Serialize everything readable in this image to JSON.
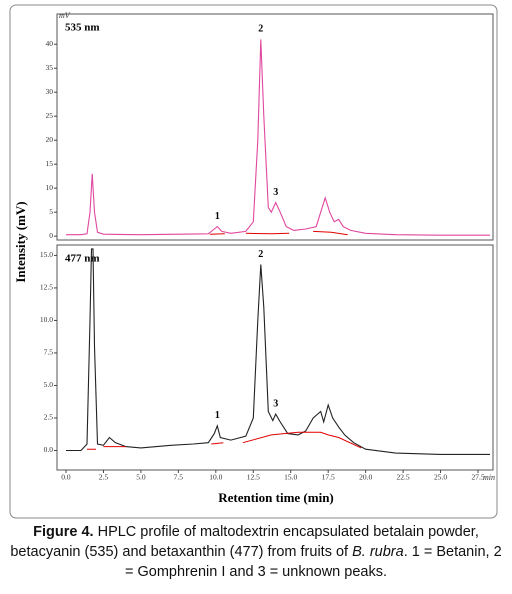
{
  "chart_data": [
    {
      "type": "line",
      "label": "535 nm",
      "unit_label": "mV",
      "ylabel": "Intensity (mV)",
      "xlim": [
        -0.6,
        28.5
      ],
      "ylim": [
        -0.8,
        46.3
      ],
      "yticks": [
        0,
        5,
        10,
        15,
        20,
        25,
        30,
        35,
        40
      ],
      "series": [
        {
          "color": "#e0479e",
          "x": [
            0,
            1.0,
            1.4,
            1.6,
            1.75,
            1.9,
            2.1,
            2.5,
            5,
            9.5,
            9.9,
            10.1,
            10.4,
            11,
            12,
            12.5,
            12.8,
            13.0,
            13.2,
            13.5,
            13.7,
            14.0,
            14.3,
            14.7,
            15.2,
            16,
            16.7,
            17.0,
            17.3,
            17.6,
            17.9,
            18.2,
            18.5,
            19,
            20,
            22,
            25,
            28.3
          ],
          "values": [
            0.3,
            0.3,
            0.5,
            5,
            13,
            5,
            0.8,
            0.4,
            0.3,
            0.5,
            1.5,
            2.0,
            1.0,
            0.6,
            1.0,
            3,
            20,
            41,
            25,
            6,
            5,
            7,
            5,
            2,
            1.2,
            1.5,
            2,
            5,
            8,
            5,
            3,
            3.5,
            2,
            1.2,
            0.6,
            0.3,
            0.2,
            0.2
          ]
        },
        {
          "color": "#e00000",
          "x": [
            9.6,
            10.6,
            null,
            12.0,
            13.7,
            14.9,
            null,
            16.5,
            17.7,
            18.8
          ],
          "values": [
            0.4,
            0.5,
            null,
            0.6,
            0.5,
            0.6,
            null,
            1.0,
            0.8,
            0.3
          ]
        }
      ],
      "peaks": [
        {
          "label": "1",
          "x": 10.1
        },
        {
          "label": "2",
          "x": 13.0
        },
        {
          "label": "3",
          "x": 14.0
        }
      ]
    },
    {
      "type": "line",
      "label": "477 nm",
      "xlabel": "Retention time (min)",
      "x_unit_label": "min",
      "xlim": [
        -0.6,
        28.5
      ],
      "ylim": [
        -1.5,
        15.8
      ],
      "yticks": [
        {
          "value": 0,
          "label": "0.0"
        },
        2.5,
        {
          "value": 5,
          "label": "5.0"
        },
        7.5,
        {
          "value": 10,
          "label": "10.0"
        },
        12.5,
        {
          "value": 15,
          "label": "15.0"
        }
      ],
      "xticks": [
        {
          "value": 0,
          "label": "0.0"
        },
        2.5,
        {
          "value": 5,
          "label": "5.0"
        },
        7.5,
        {
          "value": 10,
          "label": "10.0"
        },
        12.5,
        {
          "value": 15,
          "label": "15.0"
        },
        17.5,
        {
          "value": 20,
          "label": "20.0"
        },
        22.5,
        {
          "value": 25,
          "label": "25.0"
        },
        27.5
      ],
      "series": [
        {
          "color": "#222222",
          "x": [
            0,
            1.0,
            1.4,
            1.6,
            1.7,
            1.8,
            1.9,
            2.1,
            2.5,
            2.9,
            3.3,
            4,
            5,
            7,
            8.5,
            9.5,
            9.9,
            10.1,
            10.3,
            11,
            12,
            12.5,
            12.8,
            13.0,
            13.2,
            13.5,
            13.8,
            14.0,
            14.3,
            14.8,
            15.5,
            16,
            16.5,
            17.0,
            17.2,
            17.5,
            17.8,
            18.2,
            18.6,
            19.2,
            20,
            22,
            25,
            28.3
          ],
          "values": [
            0,
            0,
            0.5,
            10,
            15.5,
            15.5,
            8,
            0.5,
            0.4,
            1.0,
            0.6,
            0.3,
            0.2,
            0.4,
            0.5,
            0.6,
            1.3,
            1.9,
            1.0,
            0.8,
            1.1,
            2.5,
            10,
            14.3,
            11,
            3,
            2.3,
            2.8,
            2.2,
            1.3,
            1.2,
            1.5,
            2.5,
            3.0,
            2.2,
            3.5,
            2.5,
            1.8,
            1.2,
            0.6,
            0.1,
            -0.2,
            -0.3,
            -0.3
          ]
        },
        {
          "color": "#e00000",
          "x": [
            1.4,
            2.0,
            null,
            2.5,
            3.3,
            4.0,
            null,
            9.7,
            10.5,
            null,
            11.8,
            13.7,
            15.5,
            17.0,
            17.5,
            18.2,
            19.7
          ],
          "values": [
            0.1,
            0.1,
            null,
            0.3,
            0.3,
            0.3,
            null,
            0.5,
            0.6,
            null,
            0.6,
            1.2,
            1.4,
            1.4,
            1.2,
            1.0,
            0.2
          ]
        }
      ],
      "peaks": [
        {
          "label": "1",
          "x": 10.1
        },
        {
          "label": "2",
          "x": 13.0
        },
        {
          "label": "3",
          "x": 14.0
        }
      ]
    }
  ],
  "caption": {
    "label": "Figure 4.",
    "text": "HPLC profile of maltodextrin encapsulated betalain powder, betacyanin (535) and betaxanthin (477) from fruits of ",
    "species": "B. rubra",
    "text_end": ". 1 = Betanin, 2 = Gomphrenin I and 3 = unknown peaks."
  }
}
